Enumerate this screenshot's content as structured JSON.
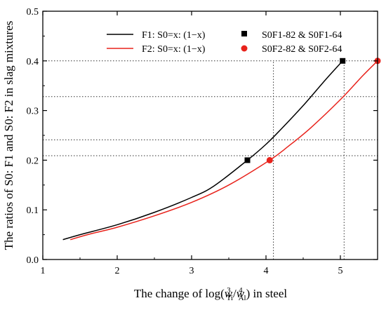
{
  "chart_data": {
    "type": "line",
    "xlabel": "The change of log(w³Ti/w⁴Al) in steel",
    "ylabel": "The ratios of S0: F1 and S0: F2 in slag mixtures",
    "xlim": [
      1,
      5.5
    ],
    "ylim": [
      0,
      0.5
    ],
    "xticks": [
      1,
      2,
      3,
      4,
      5
    ],
    "yticks": [
      0.0,
      0.1,
      0.2,
      0.3,
      0.4,
      0.5
    ],
    "grid": false,
    "legend_placement": "top-right",
    "series": [
      {
        "name": "F1: S0=x: (1−x)",
        "kind": "line",
        "color": "#000000",
        "x": [
          1.27,
          1.5,
          2.0,
          2.5,
          3.0,
          3.3,
          3.75,
          4.0,
          4.2,
          4.5,
          4.8,
          5.03
        ],
        "y": [
          0.04,
          0.05,
          0.07,
          0.095,
          0.125,
          0.148,
          0.2,
          0.232,
          0.262,
          0.31,
          0.362,
          0.4
        ]
      },
      {
        "name": "F2: S0=x: (1−x)",
        "kind": "line",
        "color": "#e8221b",
        "x": [
          1.37,
          1.6,
          2.0,
          2.5,
          3.0,
          3.5,
          4.05,
          4.3,
          4.6,
          5.0,
          5.3,
          5.5
        ],
        "y": [
          0.04,
          0.05,
          0.065,
          0.088,
          0.115,
          0.15,
          0.2,
          0.228,
          0.265,
          0.322,
          0.37,
          0.4
        ]
      },
      {
        "name": "S0F1-82 & S0F1-64",
        "kind": "scatter",
        "marker": "square",
        "color": "#000000",
        "x": [
          3.75,
          5.03
        ],
        "y": [
          0.2,
          0.4
        ]
      },
      {
        "name": "S0F2-82 & S0F2-64",
        "kind": "scatter",
        "marker": "circle",
        "color": "#e8221b",
        "x": [
          4.05,
          5.5
        ],
        "y": [
          0.2,
          0.4
        ]
      }
    ],
    "reference_lines": {
      "horizontal_y": [
        0.4,
        0.328,
        0.241,
        0.209
      ],
      "vertical_x": [
        4.1,
        5.05
      ]
    }
  }
}
